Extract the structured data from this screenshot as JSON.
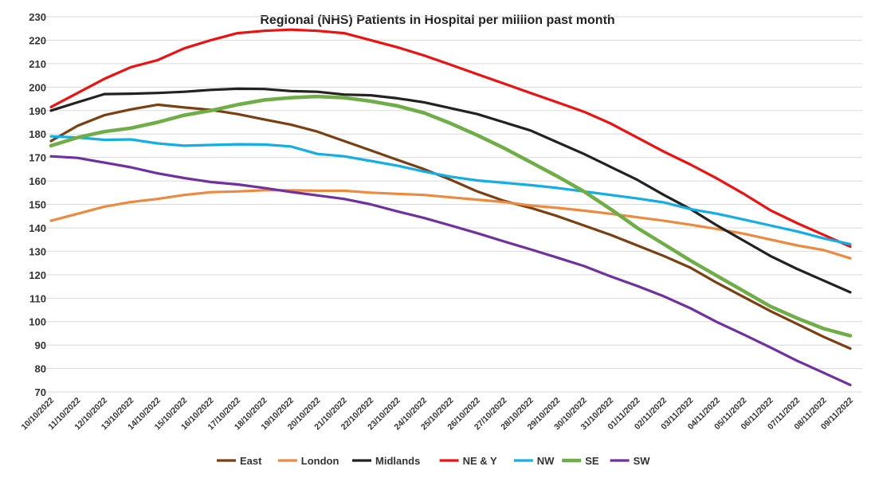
{
  "chart_data": {
    "type": "line",
    "title": "Regional (NHS) Patients in Hospital per million past month",
    "xlabel": "",
    "ylabel": "",
    "ylim": [
      70,
      230
    ],
    "ystep": 10,
    "grid": true,
    "legend_position": "bottom",
    "categories": [
      "10/10/2022",
      "11/10/2022",
      "12/10/2022",
      "13/10/2022",
      "14/10/2022",
      "15/10/2022",
      "16/10/2022",
      "17/10/2022",
      "18/10/2022",
      "19/10/2022",
      "20/10/2022",
      "21/10/2022",
      "22/10/2022",
      "23/10/2022",
      "24/10/2022",
      "25/10/2022",
      "26/10/2022",
      "27/10/2022",
      "28/10/2022",
      "29/10/2022",
      "30/10/2022",
      "31/10/2022",
      "01/11/2022",
      "02/11/2022",
      "03/11/2022",
      "04/11/2022",
      "05/11/2022",
      "06/11/2022",
      "07/11/2022",
      "08/11/2022",
      "09/11/2022"
    ],
    "series": [
      {
        "name": "East",
        "color": "#7b3f12",
        "values": [
          177,
          183.5,
          188,
          190.5,
          192.5,
          191.3,
          190.3,
          188.5,
          186.2,
          184,
          181,
          177,
          173,
          169,
          165,
          160.5,
          155.5,
          151.5,
          148.5,
          145,
          141,
          137,
          132.5,
          128,
          123,
          116.5,
          110.5,
          104.5,
          99,
          93.5,
          88.5
        ]
      },
      {
        "name": "London",
        "color": "#ed8a3f",
        "values": [
          143,
          146,
          149,
          151,
          152.3,
          154,
          155.2,
          155.5,
          156,
          156,
          155.8,
          155.8,
          155,
          154.5,
          154,
          153,
          152,
          151,
          149.5,
          148.5,
          147.3,
          146,
          144.5,
          143,
          141.3,
          139.5,
          137.5,
          135,
          132.5,
          130.5,
          127
        ]
      },
      {
        "name": "Midlands",
        "color": "#222222",
        "values": [
          190,
          193.5,
          197,
          197.2,
          197.5,
          198,
          198.8,
          199.3,
          199.2,
          198.3,
          198,
          196.8,
          196.5,
          195.2,
          193.5,
          191,
          188.5,
          185,
          181.5,
          176.5,
          171.5,
          166,
          160.5,
          154,
          148,
          141,
          134.5,
          128,
          122.5,
          117.5,
          112.5
        ]
      },
      {
        "name": "NE & Y",
        "color": "#ee1111",
        "values": [
          191.5,
          197.5,
          203.5,
          208.5,
          211.5,
          216.5,
          220,
          223,
          224,
          224.5,
          224,
          223,
          220,
          217,
          213.5,
          209.5,
          205.5,
          201.5,
          197.5,
          193.5,
          189.5,
          184.5,
          178.5,
          172.5,
          167,
          161,
          154.5,
          147.5,
          142,
          137,
          132
        ]
      },
      {
        "name": "NW",
        "color": "#13aee6",
        "values": [
          179,
          178.5,
          177.5,
          177.7,
          176,
          175,
          175.3,
          175.6,
          175.5,
          174.7,
          171.5,
          170.5,
          168.5,
          166.5,
          164,
          161.8,
          160.2,
          159.2,
          158.2,
          157,
          155.5,
          154,
          152.5,
          150.8,
          148,
          146,
          143.5,
          141,
          138.5,
          135.5,
          133
        ]
      },
      {
        "name": "SE",
        "color": "#6fad47",
        "values": [
          175,
          178.5,
          181,
          182.5,
          185,
          188,
          190,
          192.5,
          194.5,
          195.5,
          196,
          195.5,
          194,
          192,
          189,
          184.5,
          179.5,
          174,
          168,
          162,
          155.5,
          148,
          140,
          133,
          126,
          119.5,
          113,
          106.5,
          101.5,
          97,
          94
        ]
      },
      {
        "name": "SW",
        "color": "#7030a0",
        "values": [
          170.5,
          169.8,
          167.8,
          165.8,
          163.2,
          161.2,
          159.5,
          158.5,
          157,
          155.3,
          153.8,
          152.3,
          150,
          147,
          144.2,
          141,
          137.7,
          134.2,
          130.8,
          127.3,
          123.7,
          119.3,
          115.2,
          110.8,
          105.7,
          99.8,
          94.5,
          89,
          83.3,
          78.2,
          73
        ]
      }
    ]
  }
}
